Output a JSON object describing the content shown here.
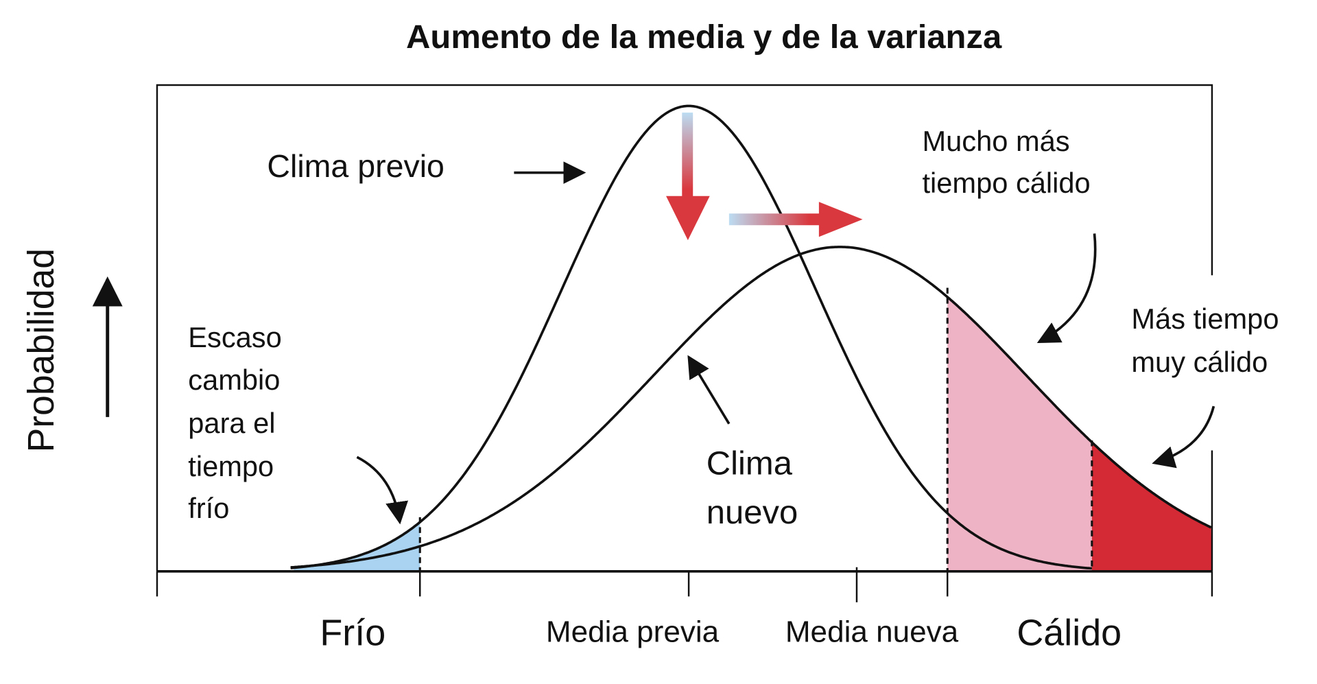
{
  "title": "Aumento de la media y de la varianza",
  "y_axis_label": "Probabilidad",
  "x_labels": [
    "Frío",
    "Media previa",
    "Media nueva",
    "Cálido"
  ],
  "annotations": {
    "previous_climate": "Clima previo",
    "new_climate": [
      "Clima",
      "nuevo"
    ],
    "cold_weather": [
      "Escaso",
      "cambio",
      "para el",
      "tiempo",
      "frío"
    ],
    "hot_weather": [
      "Mucho más",
      "tiempo cálido"
    ],
    "extreme_hot_weather": [
      "Más tiempo",
      "muy cálido"
    ]
  }
}
